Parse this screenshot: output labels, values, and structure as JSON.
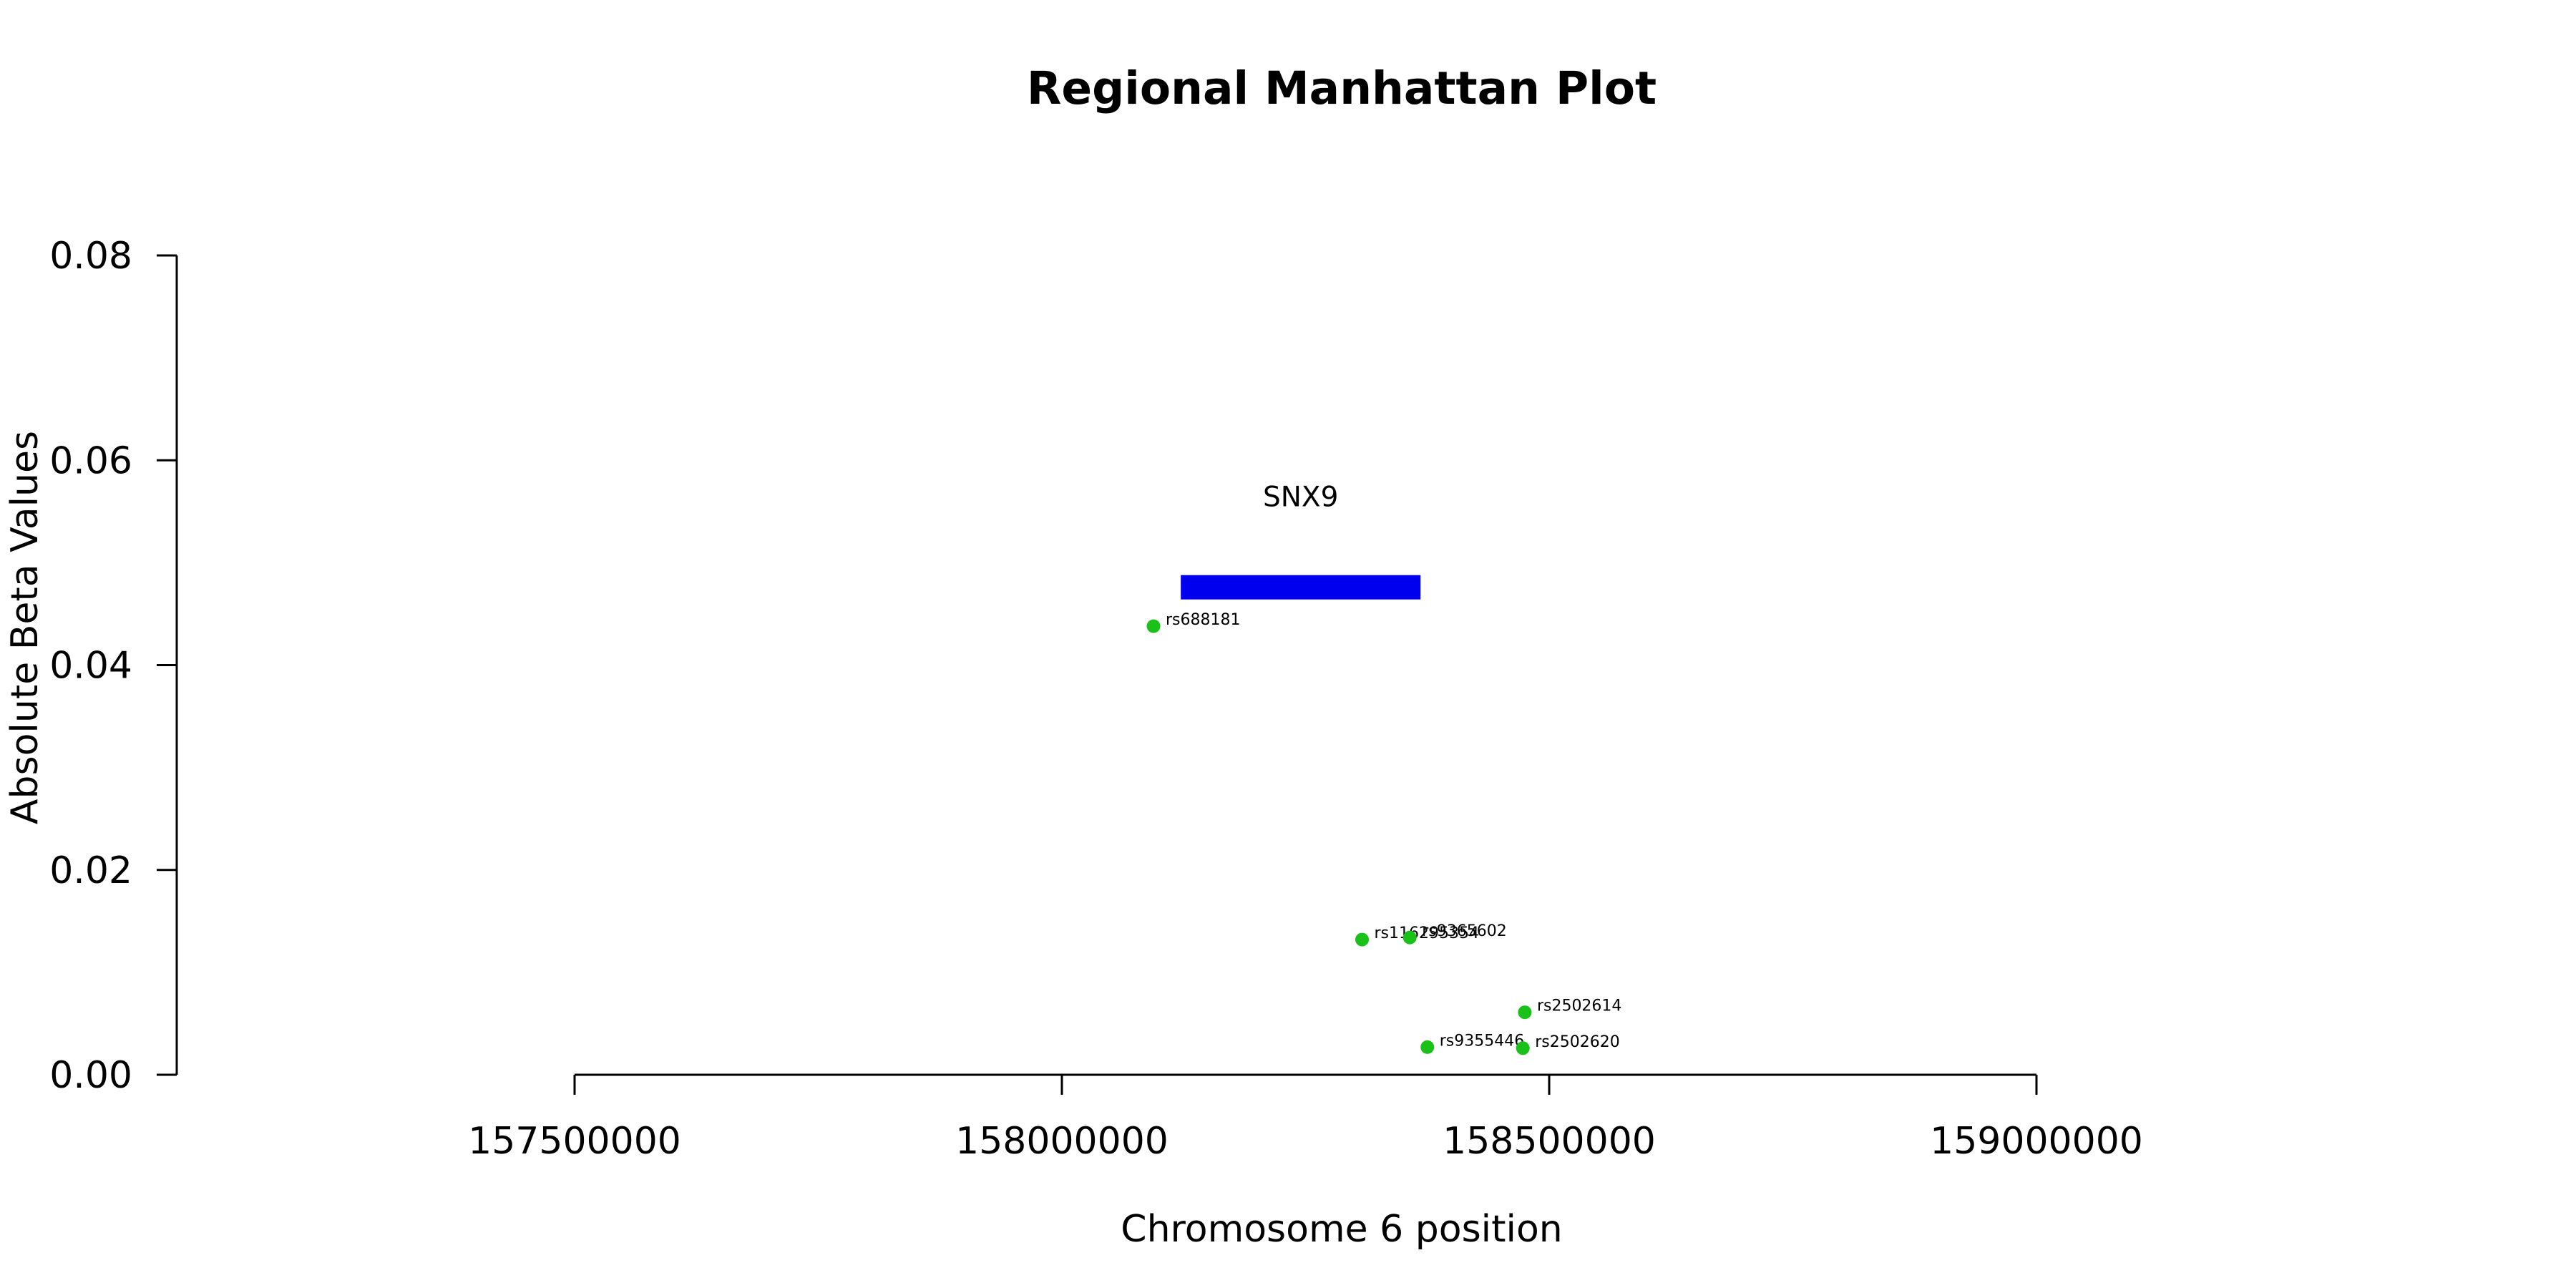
{
  "chart_data": {
    "type": "scatter",
    "title": "Regional Manhattan Plot",
    "xlabel": "Chromosome 6 position",
    "ylabel": "Absolute Beta Values",
    "xlim": [
      157500000,
      159000000
    ],
    "ylim": [
      0,
      0.08
    ],
    "x_ticks": [
      157500000,
      158000000,
      158500000,
      159000000
    ],
    "y_ticks": [
      0.0,
      0.02,
      0.04,
      0.06,
      0.08
    ],
    "x_tick_labels": [
      "157500000",
      "158000000",
      "158500000",
      "159000000"
    ],
    "y_tick_labels": [
      "0.00",
      "0.02",
      "0.04",
      "0.06",
      "0.08"
    ],
    "grid": false,
    "point_color": "#19c119",
    "gene_color": "#0000ee",
    "points": [
      {
        "label": "rs688181",
        "x": 158094000,
        "y": 0.0438
      },
      {
        "label": "rs116295354",
        "x": 158308000,
        "y": 0.0132
      },
      {
        "label": "rs9365602",
        "x": 158357000,
        "y": 0.0134
      },
      {
        "label": "rs2502614",
        "x": 158475000,
        "y": 0.0061
      },
      {
        "label": "rs9355446",
        "x": 158375000,
        "y": 0.0027
      },
      {
        "label": "rs2502620",
        "x": 158473000,
        "y": 0.0026
      }
    ],
    "genes": [
      {
        "name": "SNX9",
        "start": 158122000,
        "end": 158368000,
        "y_center": 0.0476,
        "label_y": 0.0565
      }
    ]
  }
}
